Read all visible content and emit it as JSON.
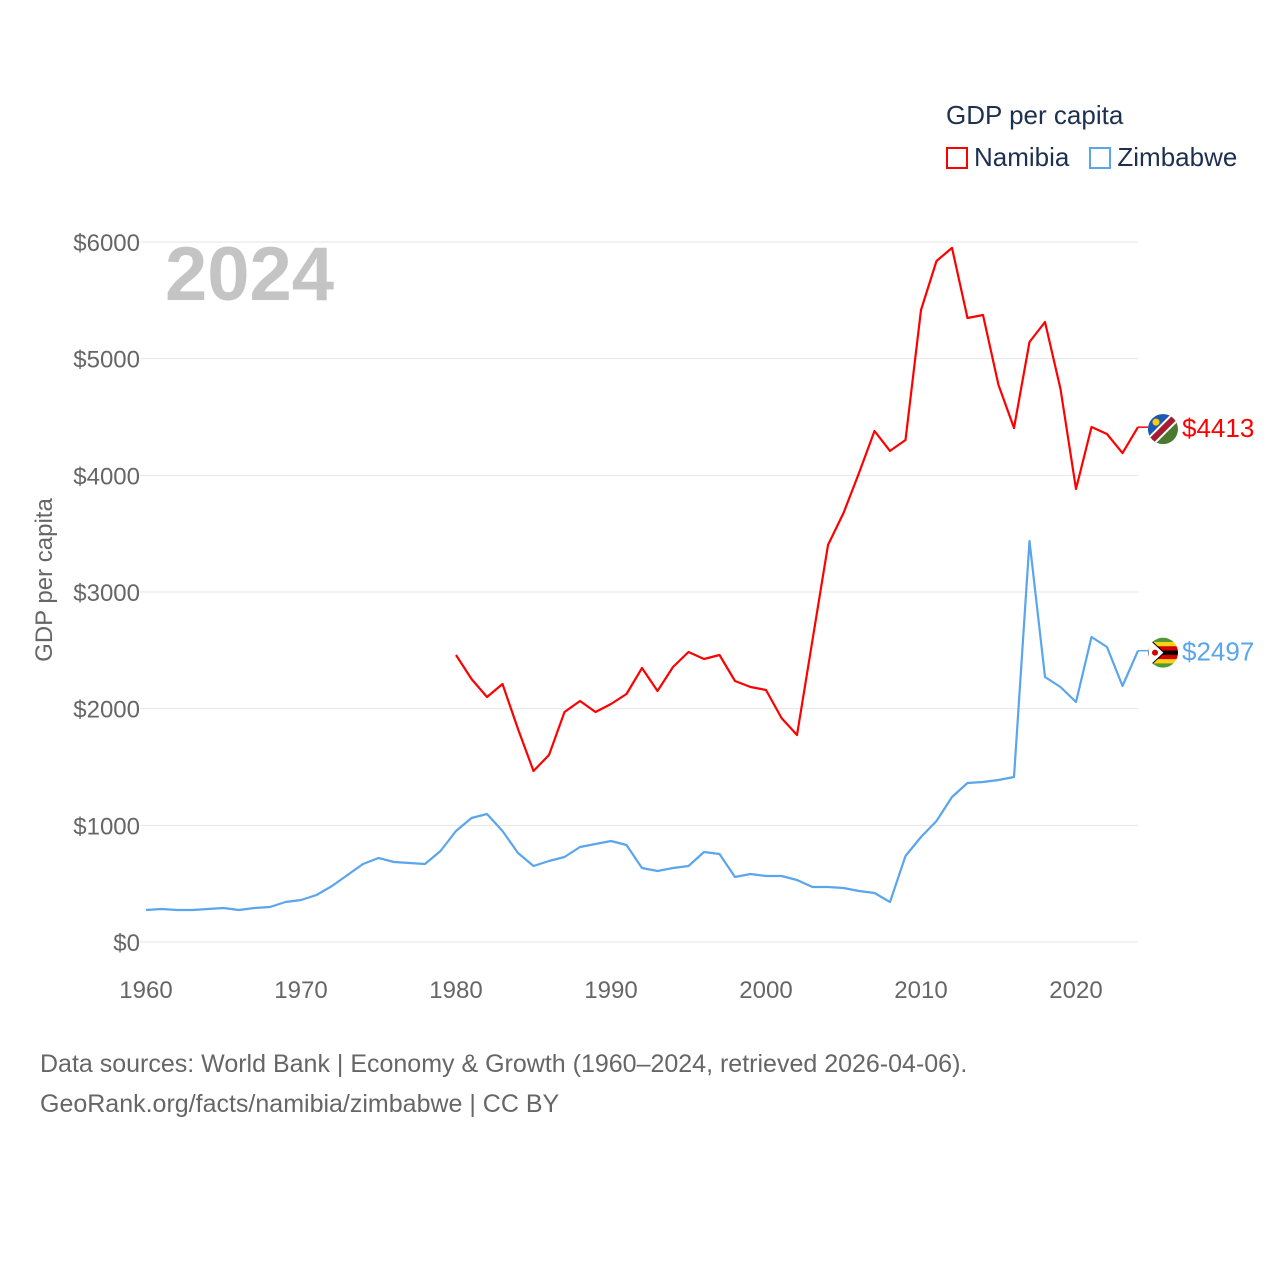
{
  "chart_data": {
    "type": "line",
    "title": "GDP per capita",
    "ylabel": "GDP per capita",
    "xlabel": "",
    "year_watermark": "2024",
    "xlim": [
      1960,
      2024
    ],
    "ylim": [
      0,
      6000
    ],
    "x_ticks": [
      1960,
      1970,
      1980,
      1990,
      2000,
      2010,
      2020
    ],
    "x_tick_labels": [
      "1960",
      "1970",
      "1980",
      "1990",
      "2000",
      "2010",
      "2020"
    ],
    "y_ticks": [
      0,
      1000,
      2000,
      3000,
      4000,
      5000,
      6000
    ],
    "y_tick_labels": [
      "$0",
      "$1000",
      "$2000",
      "$3000",
      "$4000",
      "$5000",
      "$6000"
    ],
    "grid": true,
    "legend_position": "top-right",
    "series": [
      {
        "name": "Namibia",
        "color": "#ff0000",
        "end_label": "$4413",
        "flag": "namibia-flag",
        "x_start": 1980,
        "values": [
          2460,
          2254,
          2100,
          2211,
          1826,
          1466,
          1603,
          1971,
          2066,
          1971,
          2040,
          2126,
          2349,
          2151,
          2357,
          2486,
          2426,
          2460,
          2237,
          2186,
          2160,
          1920,
          1774,
          2589,
          3403,
          3677,
          4020,
          4380,
          4209,
          4303,
          5417,
          5837,
          5949,
          5349,
          5374,
          4774,
          4406,
          5143,
          5314,
          4740,
          3883,
          4414,
          4354,
          4191,
          4413
        ]
      },
      {
        "name": "Zimbabwe",
        "color": "#5aa5ec",
        "end_label": "$2497",
        "flag": "zimbabwe-flag",
        "x_start": 1960,
        "values": [
          274,
          283,
          274,
          274,
          283,
          291,
          274,
          291,
          300,
          343,
          360,
          403,
          480,
          574,
          669,
          720,
          686,
          677,
          669,
          780,
          951,
          1063,
          1097,
          951,
          763,
          651,
          694,
          729,
          814,
          840,
          866,
          831,
          634,
          609,
          634,
          651,
          771,
          754,
          557,
          583,
          566,
          566,
          531,
          471,
          471,
          463,
          437,
          420,
          343,
          737,
          900,
          1037,
          1243,
          1363,
          1371,
          1389,
          1414,
          3437,
          2271,
          2186,
          2057,
          2614,
          2529,
          2194,
          2497
        ]
      }
    ]
  },
  "legend": {
    "title": "GDP per capita",
    "items": [
      "Namibia",
      "Zimbabwe"
    ]
  },
  "footer": {
    "line1": "Data sources: World Bank | Economy & Growth (1960–2024, retrieved 2026-04-06).",
    "line2": "GeoRank.org/facts/namibia/zimbabwe | CC BY"
  }
}
